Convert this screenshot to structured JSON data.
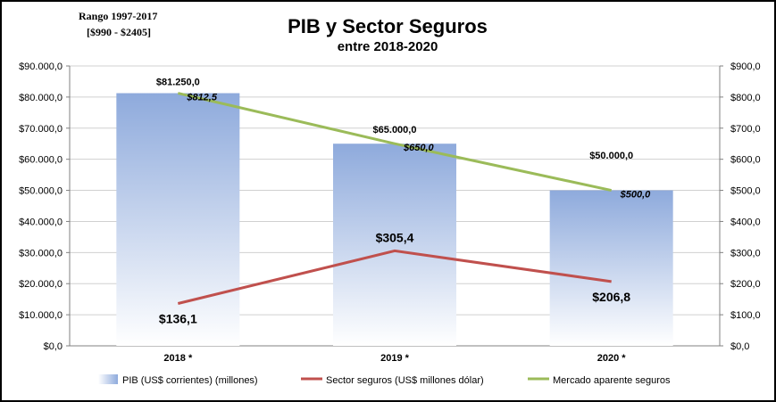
{
  "chart_data": {
    "type": "bar",
    "title": "PIB y Sector Seguros",
    "subtitle": "entre 2018-2020",
    "note": [
      "Rango 1997-2017",
      "[$990 - $2405]"
    ],
    "categories": [
      "2018 *",
      "2019 *",
      "2020 *"
    ],
    "y_left": {
      "min": 0,
      "max": 90000,
      "step": 10000,
      "ticks": [
        "$0,0",
        "$10.000,0",
        "$20.000,0",
        "$30.000,0",
        "$40.000,0",
        "$50.000,0",
        "$60.000,0",
        "$70.000,0",
        "$80.000,0",
        "$90.000,0"
      ]
    },
    "y_right": {
      "min": 0,
      "max": 900,
      "step": 100,
      "ticks": [
        "$0,0",
        "$100,0",
        "$200,0",
        "$300,0",
        "$400,0",
        "$500,0",
        "$600,0",
        "$700,0",
        "$800,0",
        "$900,0"
      ]
    },
    "grid": true,
    "legend_position": "bottom",
    "series": [
      {
        "name": "PIB (US$ corrientes) (millones)",
        "type": "bar",
        "axis": "left",
        "values": [
          81250,
          65000,
          50000
        ],
        "labels": [
          "$81.250,0",
          "$65.000,0",
          "$50.000,0"
        ],
        "color": "#8eaadc"
      },
      {
        "name": "Sector seguros (US$ millones dólar)",
        "type": "line",
        "axis": "right",
        "values": [
          136.1,
          305.4,
          206.8
        ],
        "labels": [
          "$136,1",
          "$305,4",
          "$206,8"
        ],
        "color": "#c0504d"
      },
      {
        "name": "Mercado aparente seguros",
        "type": "line",
        "axis": "right",
        "values": [
          812.5,
          650.0,
          500.0
        ],
        "labels": [
          "$812,5",
          "$650,0",
          "$500,0"
        ],
        "color": "#9bbb59"
      }
    ]
  }
}
